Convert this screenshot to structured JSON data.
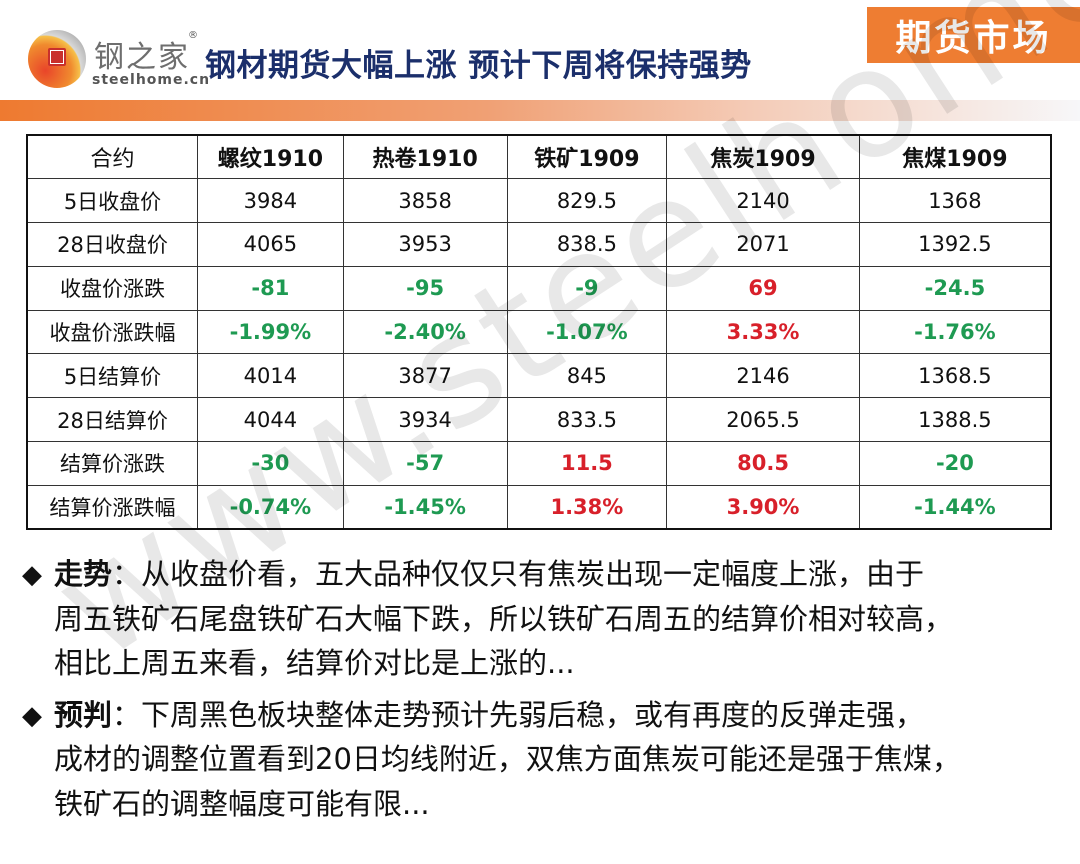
{
  "header": {
    "logo_cn": "钢之家",
    "logo_en": "steelhome.cn",
    "logo_reg": "®",
    "title": "钢材期货大幅上涨 预计下周将保持强势",
    "section_badge": "期货市场"
  },
  "colors": {
    "accent": "#ee7d32",
    "title": "#1b2f6b",
    "down": "#1e9a52",
    "up": "#d8202a"
  },
  "watermark": "www.steelhome.cn",
  "table": {
    "headers": [
      "合约",
      "螺纹1910",
      "热卷1910",
      "铁矿1909",
      "焦炭1909",
      "焦煤1909"
    ],
    "rows": [
      {
        "label": "5日收盘价",
        "cells": [
          {
            "v": "3984",
            "t": "plain"
          },
          {
            "v": "3858",
            "t": "plain"
          },
          {
            "v": "829.5",
            "t": "plain"
          },
          {
            "v": "2140",
            "t": "plain"
          },
          {
            "v": "1368",
            "t": "plain"
          }
        ]
      },
      {
        "label": "28日收盘价",
        "cells": [
          {
            "v": "4065",
            "t": "plain"
          },
          {
            "v": "3953",
            "t": "plain"
          },
          {
            "v": "838.5",
            "t": "plain"
          },
          {
            "v": "2071",
            "t": "plain"
          },
          {
            "v": "1392.5",
            "t": "plain"
          }
        ]
      },
      {
        "label": "收盘价涨跌",
        "cells": [
          {
            "v": "-81",
            "t": "neg"
          },
          {
            "v": "-95",
            "t": "neg"
          },
          {
            "v": "-9",
            "t": "neg"
          },
          {
            "v": "69",
            "t": "pos"
          },
          {
            "v": "-24.5",
            "t": "neg"
          }
        ]
      },
      {
        "label": "收盘价涨跌幅",
        "cells": [
          {
            "v": "-1.99%",
            "t": "neg"
          },
          {
            "v": "-2.40%",
            "t": "neg"
          },
          {
            "v": "-1.07%",
            "t": "neg"
          },
          {
            "v": "3.33%",
            "t": "pos"
          },
          {
            "v": "-1.76%",
            "t": "neg"
          }
        ]
      },
      {
        "label": "5日结算价",
        "cells": [
          {
            "v": "4014",
            "t": "plain"
          },
          {
            "v": "3877",
            "t": "plain"
          },
          {
            "v": "845",
            "t": "plain"
          },
          {
            "v": "2146",
            "t": "plain"
          },
          {
            "v": "1368.5",
            "t": "plain"
          }
        ]
      },
      {
        "label": "28日结算价",
        "cells": [
          {
            "v": "4044",
            "t": "plain"
          },
          {
            "v": "3934",
            "t": "plain"
          },
          {
            "v": "833.5",
            "t": "plain"
          },
          {
            "v": "2065.5",
            "t": "plain"
          },
          {
            "v": "1388.5",
            "t": "plain"
          }
        ]
      },
      {
        "label": "结算价涨跌",
        "cells": [
          {
            "v": "-30",
            "t": "neg"
          },
          {
            "v": "-57",
            "t": "neg"
          },
          {
            "v": "11.5",
            "t": "pos"
          },
          {
            "v": "80.5",
            "t": "pos"
          },
          {
            "v": "-20",
            "t": "neg"
          }
        ]
      },
      {
        "label": "结算价涨跌幅",
        "cells": [
          {
            "v": "-0.74%",
            "t": "neg"
          },
          {
            "v": "-1.45%",
            "t": "neg"
          },
          {
            "v": "1.38%",
            "t": "pos"
          },
          {
            "v": "3.90%",
            "t": "pos"
          },
          {
            "v": "-1.44%",
            "t": "neg"
          }
        ]
      }
    ]
  },
  "bullets": [
    {
      "icon": "◆",
      "term": "走势",
      "colon": "：",
      "lines": [
        "从收盘价看，五大品种仅仅只有焦炭出现一定幅度上涨，由于",
        "周五铁矿石尾盘铁矿石大幅下跌，所以铁矿石周五的结算价相对较高，",
        "相比上周五来看，结算价对比是上涨的..."
      ]
    },
    {
      "icon": "◆",
      "term": "预判",
      "colon": "：",
      "lines": [
        "下周黑色板块整体走势预计先弱后稳，或有再度的反弹走强，",
        "成材的调整位置看到20日均线附近，双焦方面焦炭可能还是强于焦煤，",
        "铁矿石的调整幅度可能有限..."
      ]
    }
  ]
}
